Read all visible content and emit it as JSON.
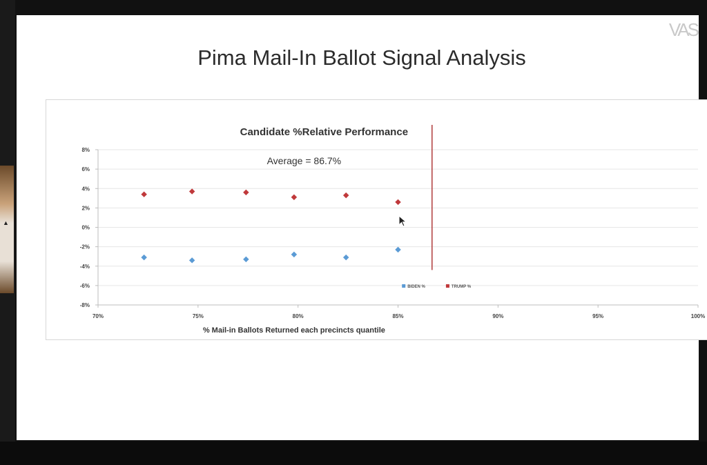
{
  "slide": {
    "title": "Pima Mail-In Ballot Signal Analysis",
    "logo_text": "VAS"
  },
  "chart_data": {
    "type": "scatter",
    "title": "Candidate %Relative Performance",
    "xlabel": "% Mail-in Ballots Returned each precincts quantile",
    "ylabel": "",
    "xlim": [
      0.7,
      1.0
    ],
    "ylim": [
      -0.08,
      0.08
    ],
    "x_ticks": [
      "70%",
      "75%",
      "80%",
      "85%",
      "90%",
      "95%",
      "100%"
    ],
    "x_tick_values": [
      0.7,
      0.75,
      0.8,
      0.85,
      0.9,
      0.95,
      1.0
    ],
    "y_ticks": [
      "8%",
      "6%",
      "4%",
      "2%",
      "0%",
      "-2%",
      "-4%",
      "-6%",
      "-8%"
    ],
    "y_tick_values": [
      0.08,
      0.06,
      0.04,
      0.02,
      0.0,
      -0.02,
      -0.04,
      -0.06,
      -0.08
    ],
    "grid": true,
    "legend_position": "bottom-center",
    "annotation": "Average = 86.7%",
    "average_x": 0.867,
    "series": [
      {
        "name": "BIDEN %",
        "color": "#5b9bd5",
        "x": [
          0.723,
          0.747,
          0.774,
          0.798,
          0.824,
          0.85
        ],
        "y": [
          -0.031,
          -0.034,
          -0.033,
          -0.028,
          -0.031,
          -0.023
        ]
      },
      {
        "name": "TRUMP %",
        "color": "#c0393b",
        "x": [
          0.723,
          0.747,
          0.774,
          0.798,
          0.824,
          0.85
        ],
        "y": [
          0.034,
          0.037,
          0.036,
          0.031,
          0.033,
          0.026
        ]
      }
    ],
    "average_line_color": "#b03a3a"
  }
}
